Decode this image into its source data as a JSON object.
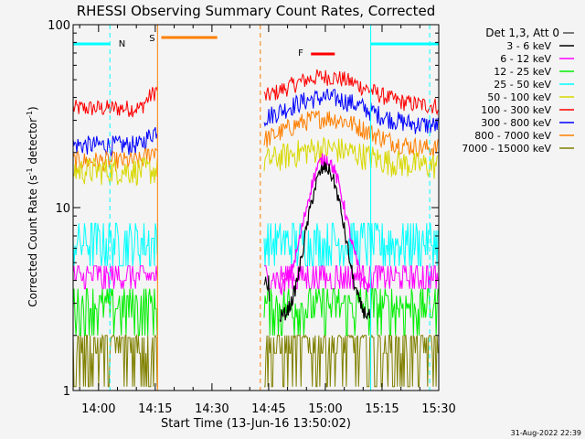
{
  "chart_data": {
    "type": "line",
    "title": "RHESSI Observing Summary Count Rates, Corrected",
    "xlabel": "Start Time (13-Jun-16 13:50:02)",
    "ylabel_main": "Corrected Count Rate (s",
    "ylabel_sup1": "-1",
    "ylabel_mid": " detector",
    "ylabel_sup2": "-1",
    "ylabel_end": ")",
    "xlim_min": [
      0,
      100
    ],
    "ylim": [
      1,
      100
    ],
    "y_scale": "log",
    "x_ticks": [
      {
        "t": 10,
        "label": "14:00"
      },
      {
        "t": 25,
        "label": "14:15"
      },
      {
        "t": 40,
        "label": "14:30"
      },
      {
        "t": 55,
        "label": "14:45"
      },
      {
        "t": 70,
        "label": "15:00"
      },
      {
        "t": 85,
        "label": "15:15"
      },
      {
        "t": 100,
        "label": "15:30"
      }
    ],
    "y_ticks": [
      {
        "v": 1,
        "label": "1"
      },
      {
        "v": 10,
        "label": "10"
      },
      {
        "v": 100,
        "label": "100"
      }
    ],
    "legend_title": "Det 1,3, Att 0",
    "series": [
      {
        "name": "3 - 6 keV",
        "color": "#000000"
      },
      {
        "name": "6 - 12 keV",
        "color": "#ff00ff"
      },
      {
        "name": "12 - 25 keV",
        "color": "#00ee00"
      },
      {
        "name": "25 - 50 keV",
        "color": "#00ffff"
      },
      {
        "name": "50 - 100 keV",
        "color": "#d8d800"
      },
      {
        "name": "100 - 300 keV",
        "color": "#ff0000"
      },
      {
        "name": "300 - 800 keV",
        "color": "#0000ff"
      },
      {
        "name": "800 - 7000 keV",
        "color": "#ff7f00"
      },
      {
        "name": "7000 - 15000 keV",
        "color": "#808000"
      }
    ],
    "flags": [
      {
        "label": "N",
        "color": "#00ffff"
      },
      {
        "label": "S",
        "color": "#ff7f00"
      },
      {
        "label": "F",
        "color": "#ff0000"
      }
    ],
    "timestamp": "31-Aug-2022 22:39"
  }
}
